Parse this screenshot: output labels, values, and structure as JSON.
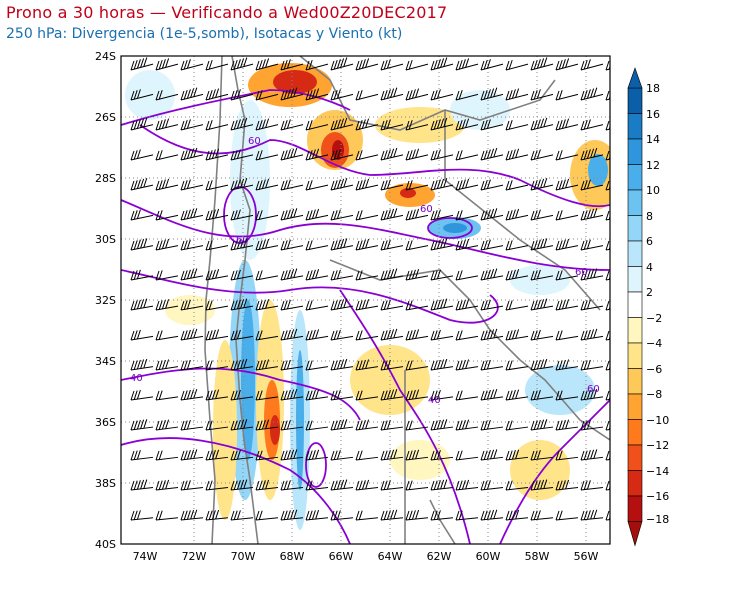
{
  "header": {
    "title": "Prono a 30 horas — Verificando a Wed00Z20DEC2017",
    "subtitle": "250 hPa: Divergencia (1e-5,somb), Isotacas y Viento (kt)"
  },
  "map": {
    "lon_range": [
      -75,
      -55
    ],
    "lat_range": [
      -40,
      -24
    ],
    "lat_labels": [
      "24S",
      "26S",
      "28S",
      "30S",
      "32S",
      "34S",
      "36S",
      "38S",
      "40S"
    ],
    "lon_labels": [
      "74W",
      "72W",
      "70W",
      "68W",
      "66W",
      "64W",
      "62W",
      "60W",
      "58W",
      "56W"
    ],
    "isotach_labels": [
      "60",
      "60",
      "60",
      "60",
      "40",
      "40",
      "60"
    ],
    "isotach_color": "#8a00d4",
    "coast_color": "#808080"
  },
  "colorbar": {
    "labels": [
      "18",
      "16",
      "14",
      "12",
      "10",
      "8",
      "6",
      "4",
      "2",
      "−2",
      "−4",
      "−6",
      "−8",
      "−10",
      "−12",
      "−14",
      "−16",
      "−18"
    ],
    "colors": [
      "#0a5fa8",
      "#1a7cc4",
      "#2f95dc",
      "#4aaeea",
      "#6cc3f2",
      "#94d6f7",
      "#b9e6fb",
      "#dff5fd",
      "#ffffff",
      "#fff6c0",
      "#ffe48a",
      "#ffc95a",
      "#ffa431",
      "#ff7a1d",
      "#f0501a",
      "#d62a14",
      "#b5100f"
    ]
  }
}
